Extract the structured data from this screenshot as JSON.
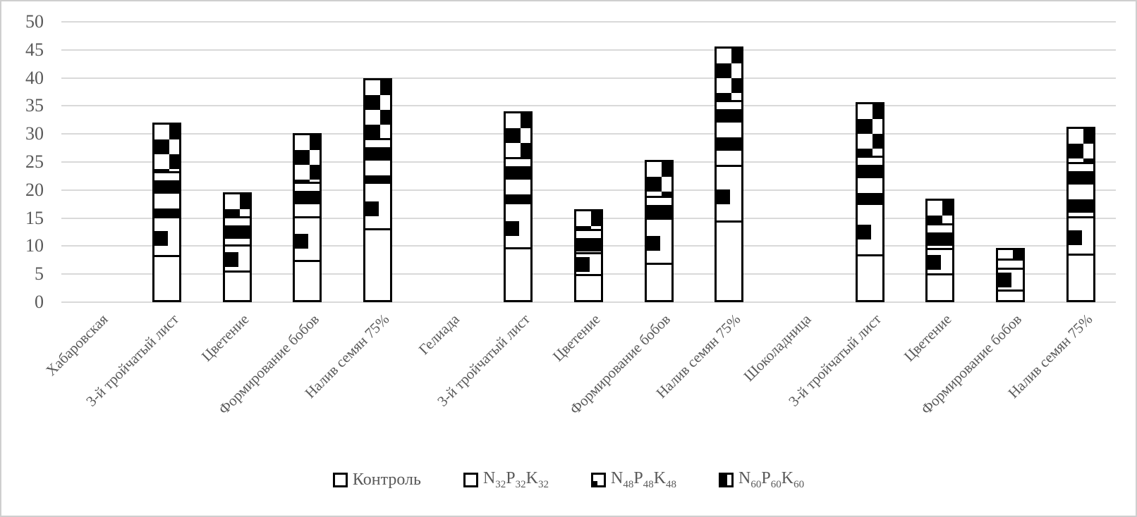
{
  "colors": {
    "background": "#ffffff",
    "frame_border": "#cfcfcf",
    "gridline": "#d9d9d9",
    "axis_text": "#595959",
    "bar_outline": "#000000",
    "bar_fill": "#ffffff",
    "pattern_black": "#000000"
  },
  "chart_data": {
    "type": "bar",
    "subtype": "stacked-vertical",
    "title": "",
    "xlabel": "",
    "ylabel": "",
    "ylim": [
      0,
      50
    ],
    "ytick_step": 5,
    "yticks": [
      0,
      5,
      10,
      15,
      20,
      25,
      30,
      35,
      40,
      45,
      50
    ],
    "grid": "horizontal",
    "legend_position": "bottom",
    "series": [
      {
        "key": "control",
        "label_runs": [
          [
            "Контроль",
            ""
          ]
        ]
      },
      {
        "key": "n32",
        "label_runs": [
          [
            "N",
            "32"
          ],
          [
            "P",
            "32"
          ],
          [
            "K",
            "32"
          ]
        ]
      },
      {
        "key": "n48",
        "label_runs": [
          [
            "N",
            "48"
          ],
          [
            "P",
            "48"
          ],
          [
            "K",
            "48"
          ]
        ]
      },
      {
        "key": "n60",
        "label_runs": [
          [
            "N",
            "60"
          ],
          [
            "P",
            "60"
          ],
          [
            "K",
            "60"
          ]
        ]
      }
    ],
    "slots": [
      {
        "label": "Хабаровская",
        "values": null
      },
      {
        "label": "3-й тройчатый лист",
        "values": [
          8.2,
          7.1,
          8.2,
          8.5
        ]
      },
      {
        "label": "Цветение",
        "values": [
          5.5,
          4.8,
          5.2,
          4.1
        ]
      },
      {
        "label": "Формирование бобов",
        "values": [
          7.3,
          8.0,
          6.3,
          8.6
        ]
      },
      {
        "label": "Налив семян 75%",
        "values": [
          13.0,
          8.5,
          8.0,
          10.5
        ]
      },
      {
        "label": "Гелиада",
        "values": null
      },
      {
        "label": "3-й тройчатый лист",
        "values": [
          9.6,
          8.2,
          8.3,
          8.0
        ]
      },
      {
        "label": "Цветение",
        "values": [
          4.8,
          4.2,
          4.3,
          3.3
        ]
      },
      {
        "label": "Формирование бобов",
        "values": [
          6.9,
          8.3,
          3.9,
          6.3
        ]
      },
      {
        "label": "Налив семян 75%",
        "values": [
          14.4,
          10.1,
          11.8,
          9.3
        ]
      },
      {
        "label": "Шоколадница",
        "values": null
      },
      {
        "label": "3-й тройчатый лист",
        "values": [
          8.4,
          9.3,
          8.6,
          9.4
        ]
      },
      {
        "label": "Цветение",
        "values": [
          5.0,
          4.7,
          4.6,
          4.2
        ]
      },
      {
        "label": "Формирование бобов",
        "values": [
          2.1,
          4.1,
          1.8,
          1.7
        ]
      },
      {
        "label": "Налив семян 75%",
        "values": [
          8.5,
          6.8,
          9.9,
          6.1
        ]
      }
    ]
  }
}
